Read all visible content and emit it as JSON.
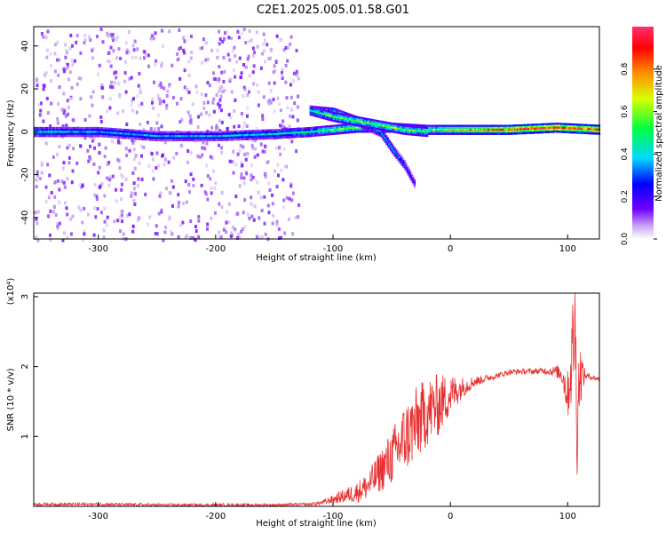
{
  "title": "C2E1.2025.005.01.58.G01",
  "chart_data": [
    {
      "type": "heatmap",
      "xlabel": "Height of straight line (km)",
      "ylabel": "Frequency (Hz)",
      "xlim": [
        -355,
        127
      ],
      "ylim": [
        -50,
        49
      ],
      "xticks": [
        -300,
        -200,
        -100,
        0,
        100
      ],
      "xtick_labels": [
        "-300",
        "-200",
        "-100",
        "0",
        "100"
      ],
      "yticks": [
        -40,
        -20,
        0,
        20,
        40
      ],
      "ytick_labels": [
        "-40",
        "-20",
        "0",
        "20",
        "40"
      ],
      "colorbar": {
        "label": "Normalized spectral amplitude",
        "range": [
          0,
          1
        ],
        "ticks": [
          0,
          0.2,
          0.4,
          0.6,
          0.8
        ],
        "tick_labels": [
          "0.0",
          "0.2",
          "0.4",
          "0.6",
          "0.8"
        ]
      },
      "ridges": [
        {
          "x": [
            -355,
            -300,
            -250,
            -200,
            -150,
            -120,
            -100,
            -80,
            -50,
            -20,
            0,
            50,
            90,
            127
          ],
          "y": [
            0,
            0,
            -2,
            -2,
            -1,
            0,
            1,
            2,
            2,
            1,
            1,
            1,
            2,
            1
          ],
          "amplitude": [
            0.45,
            0.4,
            0.4,
            0.4,
            0.45,
            0.5,
            0.6,
            0.65,
            0.6,
            0.6,
            0.7,
            0.95,
            0.95,
            0.9
          ]
        },
        {
          "x": [
            -120,
            -100,
            -80,
            -60,
            -50,
            -40,
            -30
          ],
          "y": [
            10,
            9,
            5,
            0,
            -8,
            -15,
            -25
          ],
          "amplitude": [
            0.5,
            0.55,
            0.5,
            0.45,
            0.4,
            0.3,
            0.2
          ]
        },
        {
          "x": [
            -120,
            -100,
            -80,
            -60,
            -40,
            -20
          ],
          "y": [
            10,
            7,
            5,
            3,
            1,
            0
          ],
          "amplitude": [
            0.5,
            0.6,
            0.6,
            0.6,
            0.6,
            0.6
          ]
        }
      ]
    },
    {
      "type": "line",
      "xlabel": "Height of straight line (km)",
      "ylabel": "SNR (10 * v/v)",
      "scale_label": "(x10⁴)",
      "xlim": [
        -355,
        127
      ],
      "ylim": [
        0,
        3.05
      ],
      "xticks": [
        -300,
        -200,
        -100,
        0,
        100
      ],
      "xtick_labels": [
        "-300",
        "-200",
        "-100",
        "0",
        "100"
      ],
      "yticks": [
        1,
        2,
        3
      ],
      "ytick_labels": [
        "1",
        "2",
        "3"
      ],
      "line_color": "#e83030",
      "series": [
        {
          "x": [
            -355,
            -300,
            -250,
            -200,
            -150,
            -120,
            -110,
            -100,
            -90,
            -80,
            -70,
            -60,
            -50,
            -40,
            -30,
            -20,
            -10,
            0,
            10,
            20,
            30,
            40,
            50,
            60,
            70,
            80,
            90,
            95,
            100,
            103,
            106,
            108,
            110,
            115,
            120,
            127
          ],
          "y": [
            0.03,
            0.03,
            0.02,
            0.02,
            0.02,
            0.03,
            0.05,
            0.1,
            0.15,
            0.2,
            0.3,
            0.5,
            0.7,
            0.95,
            1.15,
            1.35,
            1.45,
            1.6,
            1.7,
            1.78,
            1.83,
            1.87,
            1.92,
            1.93,
            1.93,
            1.94,
            1.93,
            1.9,
            1.6,
            2.0,
            2.7,
            1.2,
            1.9,
            1.87,
            1.85,
            1.82
          ],
          "noise_amplitude": [
            0.02,
            0.02,
            0.02,
            0.02,
            0.02,
            0.02,
            0.03,
            0.06,
            0.1,
            0.15,
            0.2,
            0.3,
            0.4,
            0.5,
            0.55,
            0.5,
            0.45,
            0.3,
            0.15,
            0.08,
            0.05,
            0.04,
            0.04,
            0.04,
            0.04,
            0.05,
            0.08,
            0.15,
            0.35,
            0.6,
            1.0,
            0.8,
            0.5,
            0.05,
            0.04,
            0.03
          ]
        }
      ]
    }
  ]
}
